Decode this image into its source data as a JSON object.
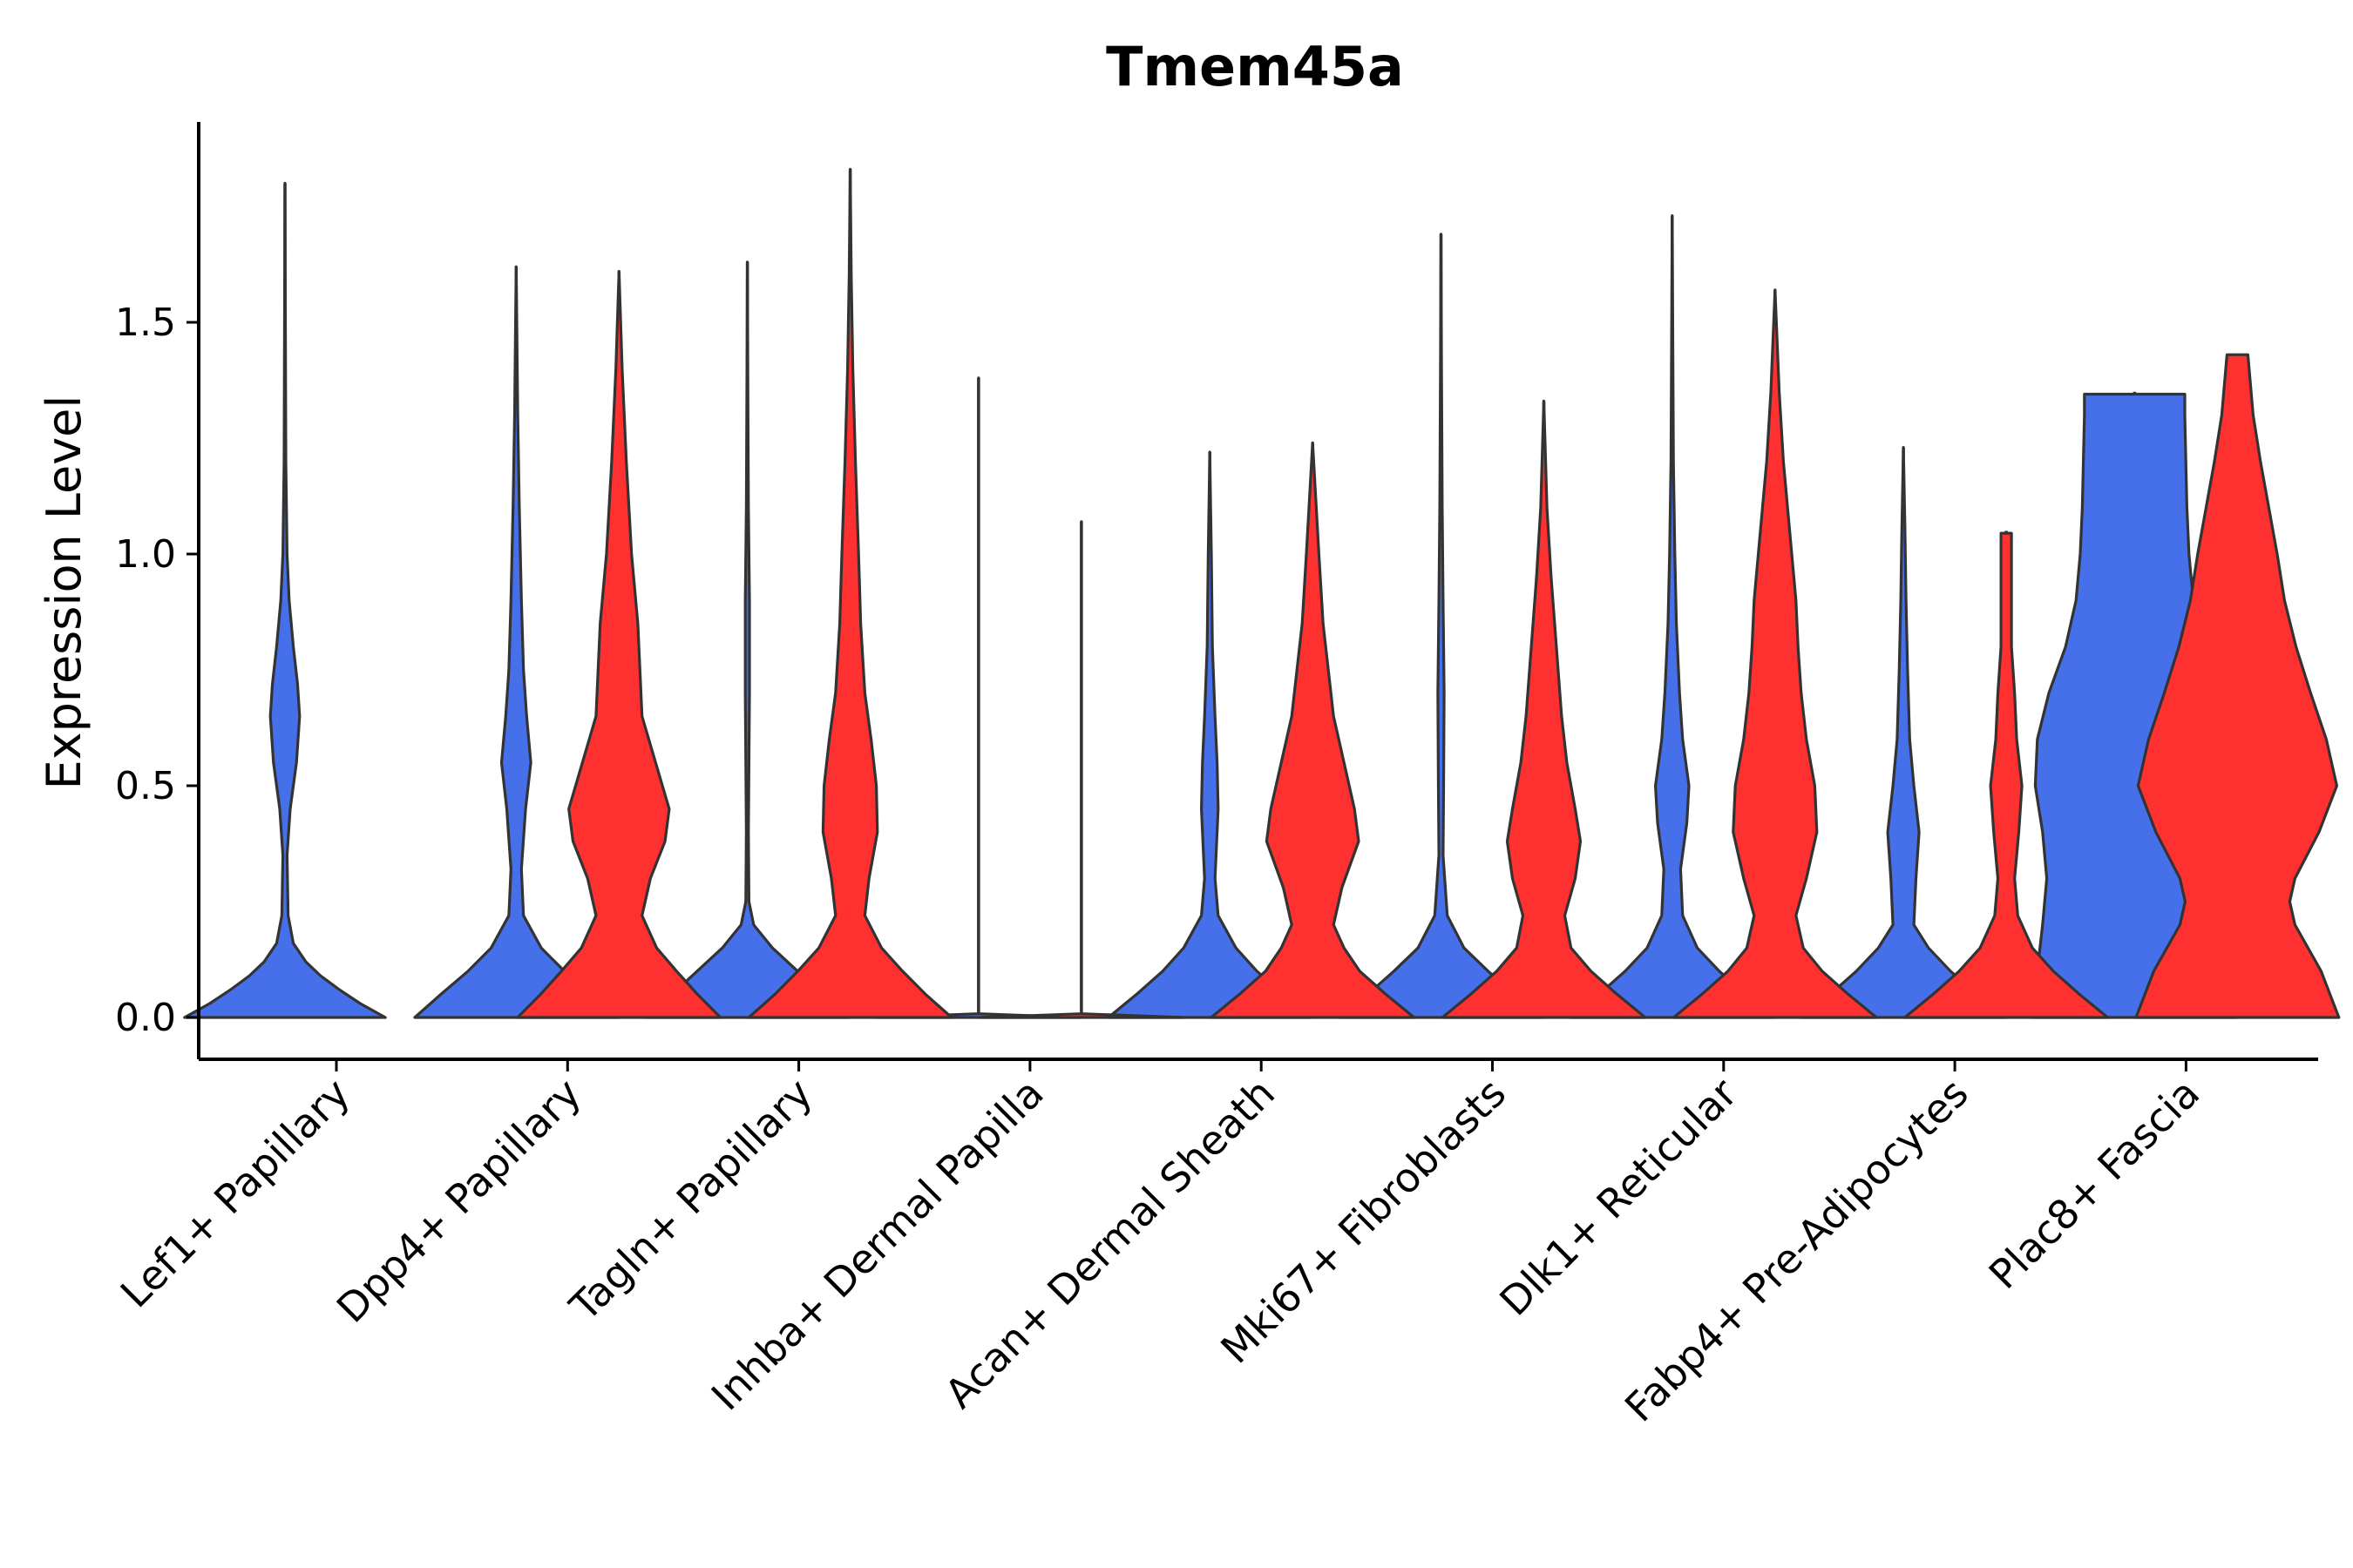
{
  "chart_data": {
    "type": "violin",
    "title": "Tmem45a",
    "xlabel": "",
    "ylabel": "Expression Level",
    "ylim": [
      -0.09,
      1.93
    ],
    "yticks": [
      0.0,
      0.5,
      1.0,
      1.5
    ],
    "ytick_labels": [
      "0.0",
      "0.5",
      "1.0",
      "1.5"
    ],
    "categories": [
      "Lef1+ Papillary",
      "Dpp4+ Papillary",
      "Tagln+ Papillary",
      "Inhba+ Dermal Papilla",
      "Acan+ Dermal Sheath",
      "Mki67+ Fibroblasts",
      "Dlk1+ Reticular",
      "Fabp4+ Pre-Adipocytes",
      "Plac8+ Fascia"
    ],
    "colors": {
      "blue": "#4670EA",
      "red": "#FF3030"
    },
    "series": [
      {
        "name": "blue",
        "violins": [
          {
            "category": 0,
            "max": 1.8,
            "profile": [
              [
                0,
                0.96
              ],
              [
                0.03,
                0.72
              ],
              [
                0.06,
                0.52
              ],
              [
                0.09,
                0.34
              ],
              [
                0.12,
                0.2
              ],
              [
                0.16,
                0.08
              ],
              [
                0.22,
                0.03
              ],
              [
                0.35,
                0.02
              ],
              [
                0.45,
                0.05
              ],
              [
                0.55,
                0.11
              ],
              [
                0.65,
                0.14
              ],
              [
                0.72,
                0.12
              ],
              [
                0.8,
                0.08
              ],
              [
                0.9,
                0.04
              ],
              [
                1.0,
                0.02
              ],
              [
                1.2,
                0.008
              ],
              [
                1.5,
                0.004
              ],
              [
                1.8,
                0
              ]
            ]
          },
          {
            "category": 1,
            "max": 1.62,
            "profile": [
              [
                0,
                0.97
              ],
              [
                0.05,
                0.72
              ],
              [
                0.1,
                0.46
              ],
              [
                0.15,
                0.24
              ],
              [
                0.22,
                0.07
              ],
              [
                0.32,
                0.05
              ],
              [
                0.45,
                0.09
              ],
              [
                0.55,
                0.14
              ],
              [
                0.65,
                0.1
              ],
              [
                0.75,
                0.07
              ],
              [
                0.9,
                0.05
              ],
              [
                1.1,
                0.03
              ],
              [
                1.3,
                0.015
              ],
              [
                1.5,
                0.006
              ],
              [
                1.62,
                0
              ]
            ]
          },
          {
            "category": 2,
            "max": 1.63,
            "profile": [
              [
                0,
                0.97
              ],
              [
                0.05,
                0.72
              ],
              [
                0.1,
                0.48
              ],
              [
                0.15,
                0.24
              ],
              [
                0.2,
                0.06
              ],
              [
                0.25,
                0.015
              ],
              [
                0.4,
                0.01
              ],
              [
                0.55,
                0.015
              ],
              [
                0.7,
                0.02
              ],
              [
                0.9,
                0.02
              ],
              [
                1.1,
                0.01
              ],
              [
                1.3,
                0.006
              ],
              [
                1.63,
                0
              ]
            ]
          },
          {
            "category": 3,
            "max": 1.38,
            "profile": [
              [
                0,
                0.97
              ],
              [
                0.008,
                0
              ],
              [
                1.38,
                0
              ]
            ]
          },
          {
            "category": 4,
            "max": 1.22,
            "profile": [
              [
                0,
                0.97
              ],
              [
                0.05,
                0.7
              ],
              [
                0.1,
                0.45
              ],
              [
                0.15,
                0.25
              ],
              [
                0.22,
                0.08
              ],
              [
                0.3,
                0.05
              ],
              [
                0.4,
                0.07
              ],
              [
                0.45,
                0.08
              ],
              [
                0.55,
                0.07
              ],
              [
                0.65,
                0.05
              ],
              [
                0.8,
                0.025
              ],
              [
                1.0,
                0.015
              ],
              [
                1.22,
                0
              ]
            ]
          },
          {
            "category": 5,
            "max": 1.69,
            "profile": [
              [
                0,
                0.97
              ],
              [
                0.05,
                0.7
              ],
              [
                0.1,
                0.45
              ],
              [
                0.15,
                0.22
              ],
              [
                0.22,
                0.06
              ],
              [
                0.35,
                0.02
              ],
              [
                0.5,
                0.025
              ],
              [
                0.7,
                0.03
              ],
              [
                0.9,
                0.02
              ],
              [
                1.1,
                0.012
              ],
              [
                1.4,
                0.005
              ],
              [
                1.69,
                0
              ]
            ]
          },
          {
            "category": 6,
            "max": 1.73,
            "profile": [
              [
                0,
                0.97
              ],
              [
                0.05,
                0.7
              ],
              [
                0.1,
                0.45
              ],
              [
                0.15,
                0.24
              ],
              [
                0.22,
                0.1
              ],
              [
                0.32,
                0.08
              ],
              [
                0.42,
                0.14
              ],
              [
                0.5,
                0.16
              ],
              [
                0.6,
                0.1
              ],
              [
                0.7,
                0.07
              ],
              [
                0.85,
                0.04
              ],
              [
                1.0,
                0.025
              ],
              [
                1.2,
                0.012
              ],
              [
                1.5,
                0.005
              ],
              [
                1.73,
                0
              ]
            ]
          },
          {
            "category": 7,
            "max": 1.23,
            "profile": [
              [
                0,
                0.97
              ],
              [
                0.05,
                0.7
              ],
              [
                0.1,
                0.45
              ],
              [
                0.15,
                0.24
              ],
              [
                0.2,
                0.1
              ],
              [
                0.3,
                0.12
              ],
              [
                0.4,
                0.15
              ],
              [
                0.5,
                0.1
              ],
              [
                0.6,
                0.06
              ],
              [
                0.75,
                0.04
              ],
              [
                0.9,
                0.025
              ],
              [
                1.05,
                0.015
              ],
              [
                1.23,
                0
              ]
            ]
          },
          {
            "category": 8,
            "max": 1.35,
            "profile": [
              [
                0,
                0.97
              ],
              [
                0.1,
                0.93
              ],
              [
                0.2,
                0.88
              ],
              [
                0.3,
                0.84
              ],
              [
                0.4,
                0.88
              ],
              [
                0.5,
                0.95
              ],
              [
                0.6,
                0.93
              ],
              [
                0.7,
                0.82
              ],
              [
                0.8,
                0.66
              ],
              [
                0.9,
                0.56
              ],
              [
                1.0,
                0.52
              ],
              [
                1.1,
                0.5
              ],
              [
                1.2,
                0.49
              ],
              [
                1.3,
                0.48
              ],
              [
                1.345,
                0.48
              ],
              [
                1.345,
                0
              ]
            ]
          }
        ]
      },
      {
        "name": "red",
        "violins": [
          {
            "category": 1,
            "max": 1.61,
            "profile": [
              [
                0,
                0.97
              ],
              [
                0.05,
                0.75
              ],
              [
                0.1,
                0.55
              ],
              [
                0.15,
                0.36
              ],
              [
                0.22,
                0.22
              ],
              [
                0.3,
                0.3
              ],
              [
                0.38,
                0.44
              ],
              [
                0.45,
                0.48
              ],
              [
                0.55,
                0.35
              ],
              [
                0.65,
                0.22
              ],
              [
                0.75,
                0.2
              ],
              [
                0.85,
                0.18
              ],
              [
                1.0,
                0.12
              ],
              [
                1.2,
                0.07
              ],
              [
                1.4,
                0.03
              ],
              [
                1.61,
                0
              ]
            ]
          },
          {
            "category": 2,
            "max": 1.83,
            "profile": [
              [
                0,
                0.97
              ],
              [
                0.05,
                0.72
              ],
              [
                0.1,
                0.5
              ],
              [
                0.15,
                0.3
              ],
              [
                0.22,
                0.14
              ],
              [
                0.3,
                0.18
              ],
              [
                0.4,
                0.26
              ],
              [
                0.5,
                0.25
              ],
              [
                0.6,
                0.2
              ],
              [
                0.7,
                0.14
              ],
              [
                0.85,
                0.1
              ],
              [
                1.0,
                0.08
              ],
              [
                1.2,
                0.05
              ],
              [
                1.4,
                0.025
              ],
              [
                1.6,
                0.01
              ],
              [
                1.83,
                0
              ]
            ]
          },
          {
            "category": 3,
            "max": 1.07,
            "profile": [
              [
                0,
                0.97
              ],
              [
                0.008,
                0
              ],
              [
                1.07,
                0
              ]
            ]
          },
          {
            "category": 4,
            "max": 1.24,
            "profile": [
              [
                0,
                0.97
              ],
              [
                0.05,
                0.7
              ],
              [
                0.1,
                0.45
              ],
              [
                0.15,
                0.3
              ],
              [
                0.2,
                0.2
              ],
              [
                0.28,
                0.28
              ],
              [
                0.38,
                0.44
              ],
              [
                0.45,
                0.4
              ],
              [
                0.55,
                0.3
              ],
              [
                0.65,
                0.2
              ],
              [
                0.75,
                0.15
              ],
              [
                0.85,
                0.1
              ],
              [
                1.0,
                0.06
              ],
              [
                1.24,
                0
              ]
            ]
          },
          {
            "category": 5,
            "max": 1.33,
            "profile": [
              [
                0,
                0.97
              ],
              [
                0.05,
                0.7
              ],
              [
                0.1,
                0.45
              ],
              [
                0.15,
                0.26
              ],
              [
                0.22,
                0.2
              ],
              [
                0.3,
                0.3
              ],
              [
                0.38,
                0.35
              ],
              [
                0.45,
                0.3
              ],
              [
                0.55,
                0.22
              ],
              [
                0.65,
                0.17
              ],
              [
                0.8,
                0.12
              ],
              [
                0.95,
                0.07
              ],
              [
                1.1,
                0.03
              ],
              [
                1.33,
                0
              ]
            ]
          },
          {
            "category": 6,
            "max": 1.57,
            "profile": [
              [
                0,
                0.97
              ],
              [
                0.05,
                0.7
              ],
              [
                0.1,
                0.45
              ],
              [
                0.15,
                0.27
              ],
              [
                0.22,
                0.2
              ],
              [
                0.3,
                0.3
              ],
              [
                0.4,
                0.4
              ],
              [
                0.5,
                0.38
              ],
              [
                0.6,
                0.3
              ],
              [
                0.7,
                0.25
              ],
              [
                0.8,
                0.22
              ],
              [
                0.9,
                0.2
              ],
              [
                1.0,
                0.16
              ],
              [
                1.1,
                0.12
              ],
              [
                1.2,
                0.08
              ],
              [
                1.35,
                0.04
              ],
              [
                1.57,
                0
              ]
            ]
          },
          {
            "category": 7,
            "max": 1.05,
            "profile": [
              [
                0,
                0.97
              ],
              [
                0.05,
                0.7
              ],
              [
                0.1,
                0.45
              ],
              [
                0.15,
                0.25
              ],
              [
                0.22,
                0.11
              ],
              [
                0.3,
                0.08
              ],
              [
                0.4,
                0.12
              ],
              [
                0.5,
                0.15
              ],
              [
                0.6,
                0.1
              ],
              [
                0.7,
                0.08
              ],
              [
                0.8,
                0.05
              ],
              [
                0.9,
                0.05
              ],
              [
                1.045,
                0.05
              ],
              [
                1.045,
                0
              ]
            ]
          },
          {
            "category": 8,
            "max": 1.43,
            "profile": [
              [
                0,
                0.97
              ],
              [
                0.1,
                0.8
              ],
              [
                0.2,
                0.55
              ],
              [
                0.25,
                0.5
              ],
              [
                0.3,
                0.55
              ],
              [
                0.4,
                0.78
              ],
              [
                0.5,
                0.95
              ],
              [
                0.6,
                0.85
              ],
              [
                0.7,
                0.7
              ],
              [
                0.8,
                0.56
              ],
              [
                0.9,
                0.45
              ],
              [
                1.0,
                0.38
              ],
              [
                1.1,
                0.3
              ],
              [
                1.2,
                0.22
              ],
              [
                1.3,
                0.15
              ],
              [
                1.43,
                0.1
              ],
              [
                1.43,
                0
              ]
            ]
          }
        ]
      }
    ]
  }
}
